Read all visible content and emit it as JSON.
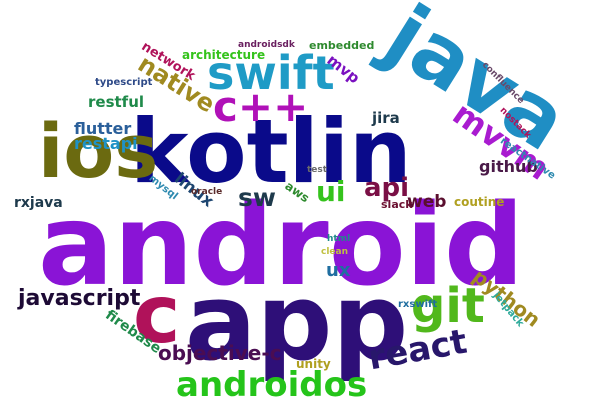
{
  "cloud": {
    "words": [
      {
        "text": "android",
        "color": "#8a14d6"
      },
      {
        "text": "kotlin",
        "color": "#0a0a8a"
      },
      {
        "text": "java",
        "color": "#1f8ec4"
      },
      {
        "text": "app",
        "color": "#2e0f78"
      },
      {
        "text": "ios",
        "color": "#6b6a10"
      },
      {
        "text": "c",
        "color": "#b0125a"
      },
      {
        "text": "swift",
        "color": "#1f9bc6"
      },
      {
        "text": "c++",
        "color": "#b011b8"
      },
      {
        "text": "git",
        "color": "#51b81c"
      },
      {
        "text": "androidos",
        "color": "#25c41a"
      },
      {
        "text": "react",
        "color": "#28176b"
      },
      {
        "text": "mvvm",
        "color": "#a91bd0"
      },
      {
        "text": "api",
        "color": "#7a0f45"
      },
      {
        "text": "ui",
        "color": "#35c31c"
      },
      {
        "text": "native",
        "color": "#a08a20"
      },
      {
        "text": "sw",
        "color": "#1e3a4c"
      },
      {
        "text": "javascript",
        "color": "#1d0a35"
      },
      {
        "text": "objective-c",
        "color": "#4a0d52"
      },
      {
        "text": "ux",
        "color": "#1f6ea0"
      },
      {
        "text": "python",
        "color": "#a08a20"
      },
      {
        "text": "web",
        "color": "#5a0e2e"
      },
      {
        "text": "flutter",
        "color": "#2a5f9a"
      },
      {
        "text": "restapi",
        "color": "#1f92c6"
      },
      {
        "text": "restful",
        "color": "#1f8a4a"
      },
      {
        "text": "linux",
        "color": "#1d4570"
      },
      {
        "text": "github",
        "color": "#4a1a48"
      },
      {
        "text": "jira",
        "color": "#1e3a4c"
      },
      {
        "text": "rxjava",
        "color": "#1e3a4c"
      },
      {
        "text": "network",
        "color": "#b0125a"
      },
      {
        "text": "architecture",
        "color": "#35c31c"
      },
      {
        "text": "mvp",
        "color": "#7a10c0"
      },
      {
        "text": "embedded",
        "color": "#2e8a2e"
      },
      {
        "text": "androidsdk",
        "color": "#6a2060"
      },
      {
        "text": "typescript",
        "color": "#2e4a88"
      },
      {
        "text": "firebase",
        "color": "#1f8a4a"
      },
      {
        "text": "unity",
        "color": "#b0a020"
      },
      {
        "text": "aws",
        "color": "#2e8a2e"
      },
      {
        "text": "coutine",
        "color": "#b0a020"
      },
      {
        "text": "slack",
        "color": "#6b1030"
      },
      {
        "text": "clean",
        "color": "#c0c040"
      },
      {
        "text": "html",
        "color": "#1f8a8a"
      },
      {
        "text": "test",
        "color": "#6a6a6a"
      },
      {
        "text": "mysql",
        "color": "#2e8ab0"
      },
      {
        "text": "oracle",
        "color": "#5a2a2a"
      },
      {
        "text": "rxswift",
        "color": "#1f6ea0"
      },
      {
        "text": "jetpack",
        "color": "#2eaa9a"
      },
      {
        "text": "reactnative",
        "color": "#2e8ab0"
      },
      {
        "text": "nostack",
        "color": "#b0125a"
      },
      {
        "text": "confluence",
        "color": "#6a4a6a"
      }
    ]
  }
}
